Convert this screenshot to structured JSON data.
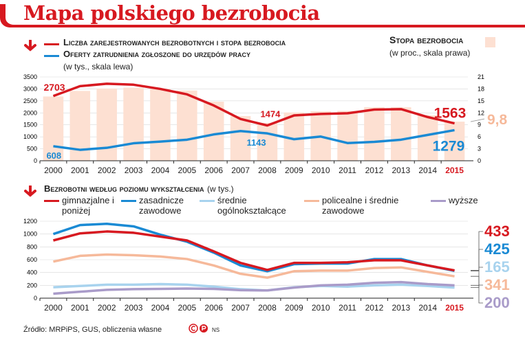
{
  "title": "Mapa polskiego bezrobocia",
  "legend_top": {
    "series1": "Liczba zarejestrowanych bezrobotnych i stopa bezrobocia",
    "series2": "Oferty zatrudnienia zgłoszone do urzędów pracy",
    "left_scale": "(w tys., skala lewa)",
    "right_title": "Stopa bezrobocia",
    "right_scale": "(w proc., skala prawa)"
  },
  "legend_bottom": {
    "title": "Bezrobotni według poziomu wykształcenia",
    "unit": "(w tys.)",
    "items": [
      "gimnazjalne i poniżej",
      "zasadnicze zawodowe",
      "średnie ogólnokształcące",
      "policealne i średnie zawodowe",
      "wyższe"
    ]
  },
  "source": "Źródło: MRPiPS, GUS, obliczenia własne",
  "credit": "NS",
  "colors": {
    "red": "#d71920",
    "blue": "#1a8ad4",
    "lightblue": "#a8d3ee",
    "salmon": "#f6b99a",
    "purple": "#a99bc9",
    "bar": "#fde0d2"
  },
  "chart_data": [
    {
      "type": "bar+line",
      "title": "Liczba zarejestrowanych bezrobotnych i stopa bezrobocia",
      "categories": [
        "2000",
        "2001",
        "2002",
        "2003",
        "2004",
        "2005",
        "2006",
        "2007",
        "2008",
        "2009",
        "2010",
        "2011",
        "2012",
        "2013",
        "2014",
        "2015"
      ],
      "ylim": [
        0,
        3500
      ],
      "yticks": [
        "0",
        "500",
        "1000",
        "1500",
        "2000",
        "2500",
        "3000",
        "3500"
      ],
      "y2lim": [
        0,
        21
      ],
      "y2ticks": [
        "0",
        "3",
        "6",
        "9",
        "12",
        "15",
        "18",
        "21"
      ],
      "bars": {
        "name": "Stopa bezrobocia",
        "axis": "right",
        "values": [
          16.1,
          17.5,
          18.1,
          18.3,
          18.0,
          17.6,
          14.8,
          11.2,
          9.5,
          12.1,
          12.4,
          12.5,
          13.4,
          13.4,
          11.4,
          9.8
        ]
      },
      "series": [
        {
          "name": "Liczba zarejestrowanych bezrobotnych",
          "axis": "left",
          "values": [
            2703,
            3115,
            3217,
            3176,
            3000,
            2773,
            2309,
            1746,
            1474,
            1892,
            1955,
            1982,
            2137,
            2157,
            1825,
            1563
          ]
        },
        {
          "name": "Oferty zatrudnienia",
          "axis": "left",
          "values": [
            608,
            457,
            540,
            730,
            800,
            880,
            1100,
            1240,
            1143,
            900,
            1010,
            740,
            790,
            880,
            1080,
            1279
          ]
        }
      ],
      "labels": {
        "first_red": "2703",
        "first_blue": "608",
        "mid_red": "1474",
        "mid_blue": "1143",
        "last_red": "1563",
        "last_blue": "1279",
        "last_rate": "9,8"
      }
    },
    {
      "type": "line",
      "title": "Bezrobotni według poziomu wykształcenia",
      "categories": [
        "2000",
        "2001",
        "2002",
        "2003",
        "2004",
        "2005",
        "2006",
        "2007",
        "2008",
        "2009",
        "2010",
        "2011",
        "2012",
        "2013",
        "2014",
        "2015"
      ],
      "ylim": [
        0,
        1200
      ],
      "yticks": [
        "0",
        "200",
        "400",
        "600",
        "800",
        "1000",
        "1200"
      ],
      "series": [
        {
          "name": "gimnazjalne i poniżej",
          "values": [
            900,
            1010,
            1040,
            1020,
            960,
            900,
            730,
            550,
            440,
            550,
            550,
            560,
            590,
            590,
            510,
            433
          ],
          "end_label": "433"
        },
        {
          "name": "zasadnicze zawodowe",
          "values": [
            1000,
            1140,
            1160,
            1120,
            990,
            880,
            710,
            510,
            420,
            530,
            540,
            540,
            610,
            610,
            510,
            425
          ],
          "end_label": "425"
        },
        {
          "name": "średnie ogólnokształcące",
          "values": [
            170,
            190,
            210,
            210,
            220,
            210,
            180,
            140,
            120,
            170,
            190,
            180,
            200,
            210,
            190,
            165
          ],
          "end_label": "165"
        },
        {
          "name": "policealne i średnie zawodowe",
          "values": [
            570,
            660,
            680,
            670,
            650,
            610,
            510,
            380,
            320,
            420,
            430,
            430,
            470,
            480,
            410,
            341
          ],
          "end_label": "341"
        },
        {
          "name": "wyższe",
          "values": [
            70,
            100,
            130,
            140,
            145,
            150,
            145,
            125,
            120,
            165,
            200,
            210,
            240,
            250,
            220,
            200
          ],
          "end_label": "200"
        }
      ]
    }
  ]
}
